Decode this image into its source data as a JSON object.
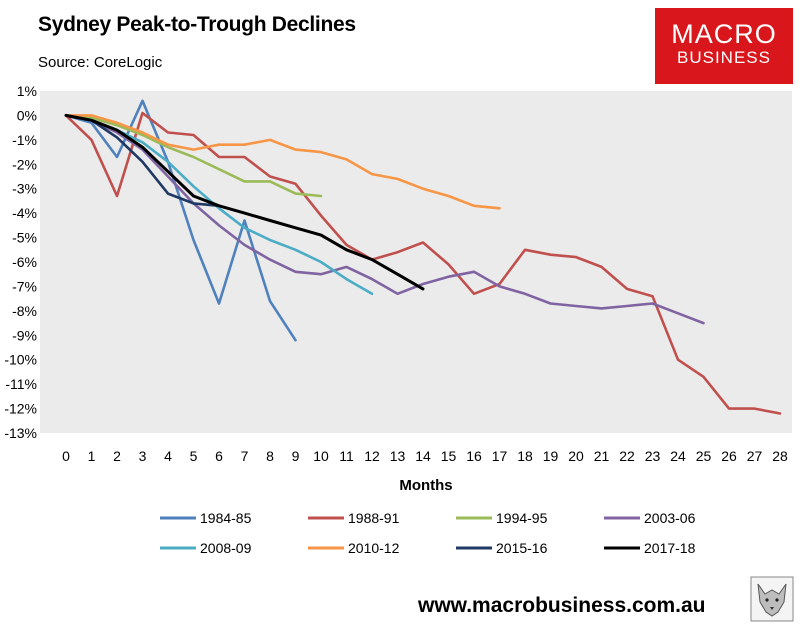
{
  "header": {
    "title": "Sydney Peak-to-Trough Declines",
    "source": "Source: CoreLogic"
  },
  "logo": {
    "line1": "MACRO",
    "line2": "BUSINESS"
  },
  "footer": {
    "url": "www.macrobusiness.com.au"
  },
  "chart_data": {
    "type": "line",
    "title": "Sydney Peak-to-Trough Declines",
    "xlabel": "Months",
    "ylabel": "",
    "xlim": [
      0,
      28
    ],
    "ylim": [
      -13,
      1
    ],
    "x_ticks": [
      0,
      1,
      2,
      3,
      4,
      5,
      6,
      7,
      8,
      9,
      10,
      11,
      12,
      13,
      14,
      15,
      16,
      17,
      18,
      19,
      20,
      21,
      22,
      23,
      24,
      25,
      26,
      27,
      28
    ],
    "y_ticks": [
      1,
      0,
      -1,
      -2,
      -3,
      -4,
      -5,
      -6,
      -7,
      -8,
      -9,
      -10,
      -11,
      -12,
      -13
    ],
    "y_tick_labels": [
      "1%",
      "0%",
      "-1%",
      "-2%",
      "-3%",
      "-4%",
      "-5%",
      "-6%",
      "-7%",
      "-8%",
      "-9%",
      "-10%",
      "-11%",
      "-12%",
      "-13%"
    ],
    "grid": false,
    "legend_position": "bottom",
    "series": [
      {
        "name": "1984-85",
        "color": "#4f81bd",
        "values": [
          0,
          -0.3,
          -1.7,
          0.6,
          -1.9,
          -5.1,
          -7.7,
          -4.3,
          -7.6,
          -9.2
        ]
      },
      {
        "name": "1988-91",
        "color": "#c0504d",
        "values": [
          0,
          -1,
          -3.3,
          0.1,
          -0.7,
          -0.8,
          -1.7,
          -1.7,
          -2.5,
          -2.8,
          -4.1,
          -5.3,
          -5.9,
          -5.6,
          -5.2,
          -6.1,
          -7.3,
          -6.9,
          -5.5,
          -5.7,
          -5.8,
          -6.2,
          -7.1,
          -7.4,
          -10,
          -10.7,
          -12,
          -12,
          -12.2
        ]
      },
      {
        "name": "1994-95",
        "color": "#9bbb59",
        "values": [
          0,
          -0.1,
          -0.4,
          -0.8,
          -1.3,
          -1.7,
          -2.2,
          -2.7,
          -2.7,
          -3.2,
          -3.3
        ]
      },
      {
        "name": "2003-06",
        "color": "#8064a2",
        "values": [
          0,
          -0.2,
          -0.7,
          -1.4,
          -2.5,
          -3.6,
          -4.5,
          -5.3,
          -5.9,
          -6.4,
          -6.5,
          -6.2,
          -6.7,
          -7.3,
          -6.9,
          -6.6,
          -6.4,
          -7,
          -7.3,
          -7.7,
          -7.8,
          -7.9,
          -7.8,
          -7.7,
          -8.1,
          -8.5
        ]
      },
      {
        "name": "2008-09",
        "color": "#4bacc6",
        "values": [
          0,
          -0.2,
          -0.6,
          -1.1,
          -1.9,
          -2.9,
          -3.8,
          -4.6,
          -5.1,
          -5.5,
          -6,
          -6.7,
          -7.3
        ]
      },
      {
        "name": "2010-12",
        "color": "#f79646",
        "values": [
          0,
          0,
          -0.3,
          -0.7,
          -1.2,
          -1.4,
          -1.2,
          -1.2,
          -1,
          -1.4,
          -1.5,
          -1.8,
          -2.4,
          -2.6,
          -3,
          -3.3,
          -3.7,
          -3.8
        ]
      },
      {
        "name": "2015-16",
        "color": "#1f3864",
        "values": [
          0,
          -0.2,
          -0.9,
          -1.9,
          -3.2,
          -3.6,
          -3.7
        ]
      },
      {
        "name": "2017-18",
        "color": "#000000",
        "values": [
          0,
          -0.2,
          -0.6,
          -1.3,
          -2.3,
          -3.3,
          -3.7,
          -4,
          -4.3,
          -4.6,
          -4.9,
          -5.5,
          -5.9,
          -6.5,
          -7.1
        ]
      }
    ]
  }
}
